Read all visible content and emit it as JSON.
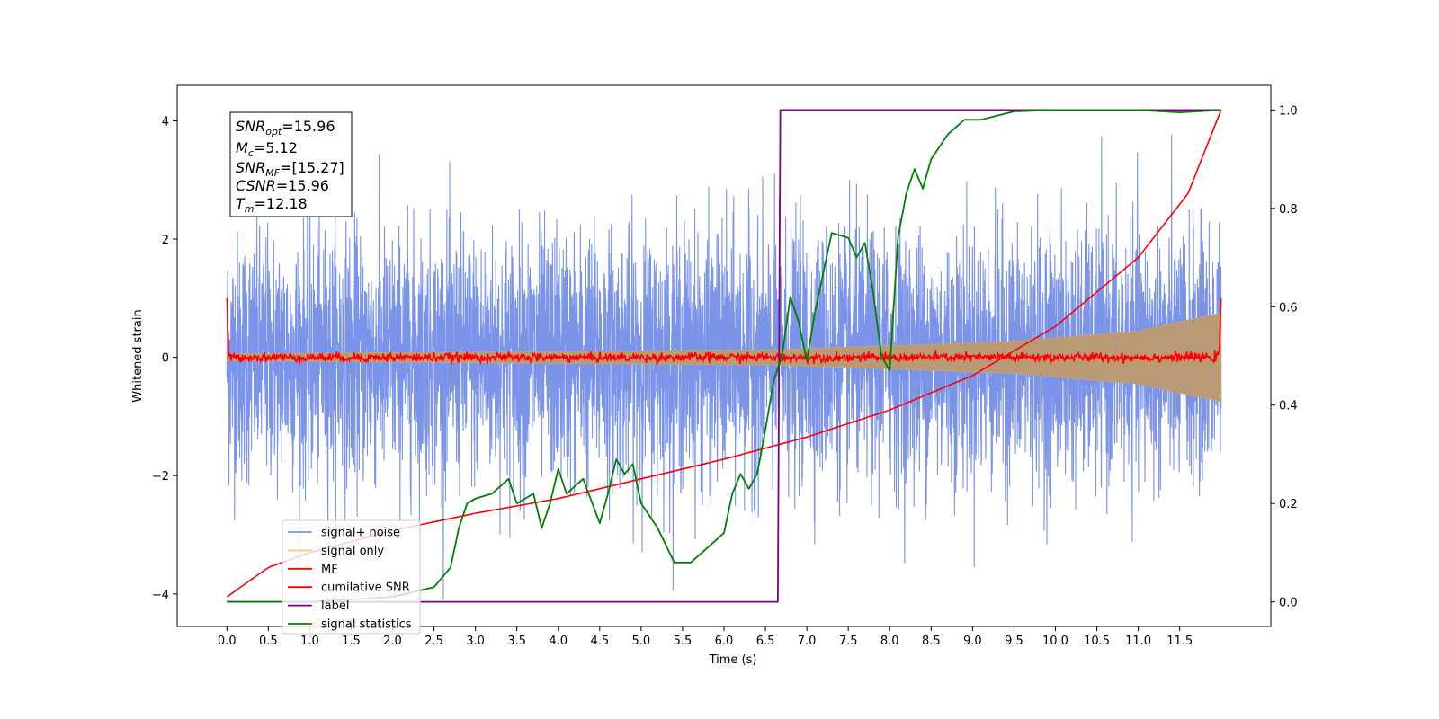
{
  "chart_data": {
    "type": "line",
    "xlabel": "Time (s)",
    "ylabel": "Whitened strain",
    "xlim": [
      -0.6,
      12.6
    ],
    "ylim": [
      -4.55,
      4.6
    ],
    "y2lim": [
      -0.05,
      1.05
    ],
    "grid": false,
    "legend_position": "lower-left",
    "x_ticks": [
      "0.0",
      "0.5",
      "1.0",
      "1.5",
      "2.0",
      "2.5",
      "3.0",
      "3.5",
      "4.0",
      "4.5",
      "5.0",
      "5.5",
      "6.0",
      "6.5",
      "7.0",
      "7.5",
      "8.0",
      "8.5",
      "9.0",
      "9.5",
      "10.0",
      "10.5",
      "11.0",
      "11.5"
    ],
    "y_ticks": [
      "−4",
      "−2",
      "0",
      "2",
      "4"
    ],
    "y2_ticks": [
      "0.0",
      "0.2",
      "0.4",
      "0.6",
      "0.8",
      "1.0"
    ],
    "annotation": {
      "snr_opt": {
        "sym": "SNR",
        "sub": "opt",
        "val": "=15.96"
      },
      "mc": {
        "sym": "M",
        "sub": "c",
        "val": "=5.12"
      },
      "snr_mf": {
        "sym": "SNR",
        "sub": "MF",
        "val": "=[15.27]"
      },
      "csnr": {
        "sym": "CSNR",
        "sub": "",
        "val": "=15.96"
      },
      "tm": {
        "sym": "T",
        "sub": "m",
        "val": "=12.18"
      }
    },
    "series": [
      {
        "name": "signal+ noise",
        "axis": "left",
        "color": "#7b93e8",
        "kind": "noise",
        "t_range": [
          0.0,
          12.0
        ],
        "sigma": 1.0,
        "min": -4.1,
        "max": 4.15
      },
      {
        "name": "signal only",
        "axis": "left",
        "color": "#fdc47a",
        "kind": "chirp_envelope",
        "envelope": [
          [
            0.0,
            0.06
          ],
          [
            6.6,
            0.13
          ],
          [
            9.5,
            0.27
          ],
          [
            11.0,
            0.45
          ],
          [
            12.0,
            0.75
          ]
        ]
      },
      {
        "name": "MF",
        "axis": "left",
        "color": "#ff0000",
        "kind": "matched_filter",
        "t_range": [
          0.0,
          12.0
        ],
        "baseline_amplitude": 0.07,
        "edge_value": 1.0
      },
      {
        "name": "cumilative SNR",
        "axis": "right",
        "color": "#ff0000",
        "kind": "curve",
        "points": [
          [
            0.0,
            0.01
          ],
          [
            0.5,
            0.07
          ],
          [
            1.0,
            0.1
          ],
          [
            2.0,
            0.145
          ],
          [
            3.0,
            0.18
          ],
          [
            4.0,
            0.21
          ],
          [
            5.0,
            0.25
          ],
          [
            6.0,
            0.29
          ],
          [
            7.0,
            0.335
          ],
          [
            8.0,
            0.39
          ],
          [
            9.0,
            0.46
          ],
          [
            10.0,
            0.56
          ],
          [
            11.0,
            0.7
          ],
          [
            11.6,
            0.83
          ],
          [
            12.0,
            1.0
          ]
        ]
      },
      {
        "name": "label",
        "axis": "right",
        "color": "#800080",
        "kind": "step",
        "points": [
          [
            0.0,
            0.0
          ],
          [
            6.65,
            0.0
          ],
          [
            6.68,
            1.0
          ],
          [
            12.0,
            1.0
          ]
        ]
      },
      {
        "name": "signal statistics",
        "axis": "right",
        "color": "#008000",
        "kind": "line",
        "points": [
          [
            0.0,
            0.0
          ],
          [
            0.5,
            0.0
          ],
          [
            1.0,
            0.0
          ],
          [
            1.5,
            0.005
          ],
          [
            2.0,
            0.01
          ],
          [
            2.5,
            0.03
          ],
          [
            2.7,
            0.07
          ],
          [
            2.8,
            0.15
          ],
          [
            2.9,
            0.2
          ],
          [
            3.0,
            0.21
          ],
          [
            3.2,
            0.22
          ],
          [
            3.4,
            0.25
          ],
          [
            3.5,
            0.2
          ],
          [
            3.7,
            0.22
          ],
          [
            3.8,
            0.15
          ],
          [
            3.9,
            0.2
          ],
          [
            4.0,
            0.27
          ],
          [
            4.1,
            0.22
          ],
          [
            4.3,
            0.25
          ],
          [
            4.5,
            0.16
          ],
          [
            4.6,
            0.22
          ],
          [
            4.7,
            0.29
          ],
          [
            4.8,
            0.26
          ],
          [
            4.9,
            0.28
          ],
          [
            5.0,
            0.2
          ],
          [
            5.2,
            0.15
          ],
          [
            5.4,
            0.08
          ],
          [
            5.6,
            0.08
          ],
          [
            5.8,
            0.11
          ],
          [
            6.0,
            0.14
          ],
          [
            6.1,
            0.22
          ],
          [
            6.2,
            0.26
          ],
          [
            6.3,
            0.23
          ],
          [
            6.4,
            0.26
          ],
          [
            6.5,
            0.35
          ],
          [
            6.6,
            0.45
          ],
          [
            6.7,
            0.5
          ],
          [
            6.8,
            0.62
          ],
          [
            6.9,
            0.57
          ],
          [
            7.0,
            0.49
          ],
          [
            7.1,
            0.59
          ],
          [
            7.3,
            0.75
          ],
          [
            7.5,
            0.74
          ],
          [
            7.6,
            0.7
          ],
          [
            7.7,
            0.73
          ],
          [
            7.8,
            0.63
          ],
          [
            7.9,
            0.5
          ],
          [
            8.0,
            0.47
          ],
          [
            8.1,
            0.74
          ],
          [
            8.2,
            0.83
          ],
          [
            8.3,
            0.88
          ],
          [
            8.4,
            0.84
          ],
          [
            8.5,
            0.9
          ],
          [
            8.7,
            0.95
          ],
          [
            8.9,
            0.98
          ],
          [
            9.1,
            0.98
          ],
          [
            9.5,
            0.997
          ],
          [
            10.0,
            1.0
          ],
          [
            10.5,
            1.0
          ],
          [
            11.0,
            1.0
          ],
          [
            11.5,
            0.995
          ],
          [
            12.0,
            1.0
          ]
        ]
      }
    ]
  }
}
